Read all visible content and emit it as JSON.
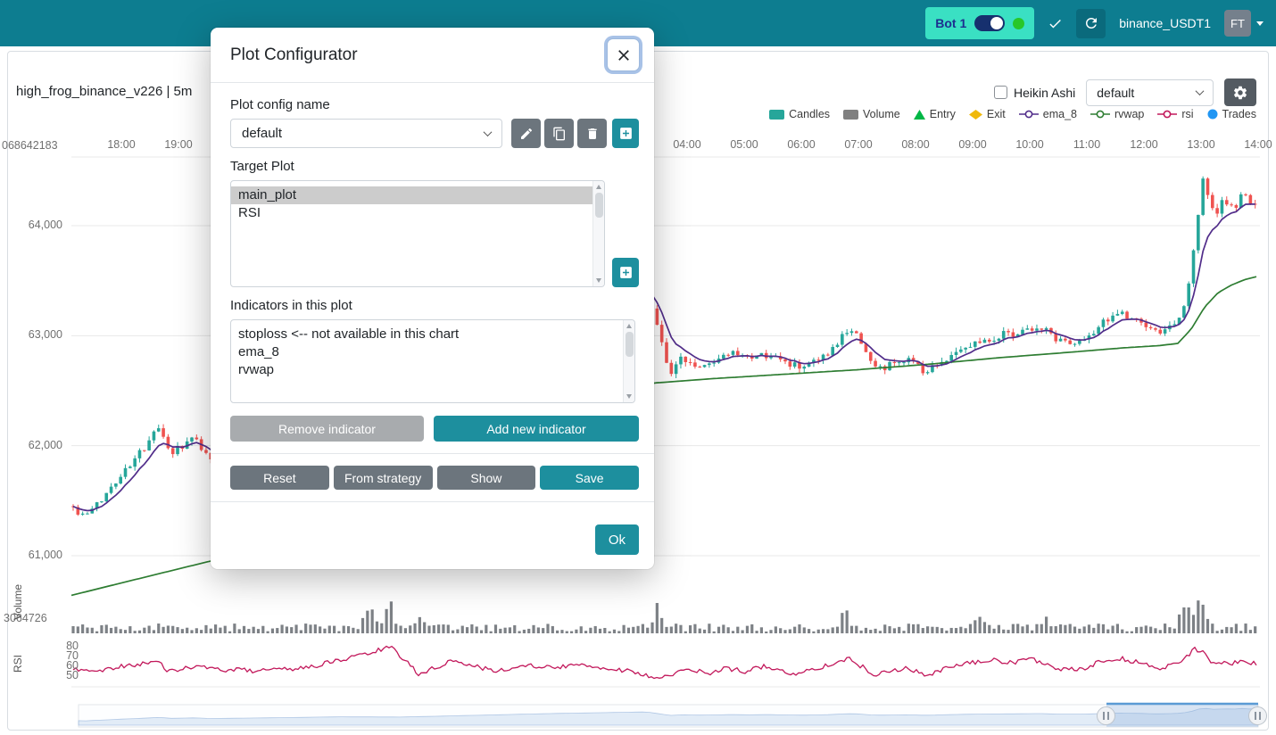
{
  "navbar": {
    "bot_label": "Bot 1",
    "instance_name": "binance_USDT1",
    "avatar_initials": "FT"
  },
  "chart": {
    "title": "high_frog_binance_v226 | 5m",
    "heikin_ashi_label": "Heikin Ashi",
    "plot_select_value": "default",
    "legend": [
      {
        "label": "Candles",
        "type": "rect",
        "color": "#26a69a"
      },
      {
        "label": "Volume",
        "type": "rect",
        "color": "#808080"
      },
      {
        "label": "Entry",
        "type": "triangle",
        "color": "#00b746"
      },
      {
        "label": "Exit",
        "type": "diamond",
        "color": "#f0b90b"
      },
      {
        "label": "ema_8",
        "type": "line-circle",
        "color": "#512d8a"
      },
      {
        "label": "rvwap",
        "type": "line-circle",
        "color": "#2e7d32"
      },
      {
        "label": "rsi",
        "type": "line-circle",
        "color": "#c2185b"
      },
      {
        "label": "Trades",
        "type": "circle",
        "color": "#2196f3"
      }
    ],
    "pane_labels": {
      "volume": "Volume",
      "rsi": "RSI"
    },
    "misc_axis_labels": {
      "top_left": "068642183",
      "volume_mid": "3064726"
    }
  },
  "modal": {
    "title": "Plot Configurator",
    "plot_config_name_label": "Plot config name",
    "config_name_value": "default",
    "target_plot_label": "Target Plot",
    "target_plots": [
      {
        "label": "main_plot",
        "selected": true
      },
      {
        "label": "RSI",
        "selected": false
      }
    ],
    "indicators_label": "Indicators in this plot",
    "indicators": [
      "stoploss <-- not available in this chart",
      "ema_8",
      "rvwap"
    ],
    "remove_button": "Remove indicator",
    "add_button": "Add new indicator",
    "reset_button": "Reset",
    "from_strategy_button": "From strategy",
    "show_button": "Show",
    "save_button": "Save",
    "ok_button": "Ok"
  },
  "chart_data": {
    "type": "candlestick",
    "x_ticks": [
      {
        "label": "18:00",
        "x": 136
      },
      {
        "label": "19:00",
        "x": 200
      },
      {
        "label": "04:00",
        "x": 770
      },
      {
        "label": "05:00",
        "x": 834
      },
      {
        "label": "06:00",
        "x": 898
      },
      {
        "label": "07:00",
        "x": 962
      },
      {
        "label": "08:00",
        "x": 1026
      },
      {
        "label": "09:00",
        "x": 1090
      },
      {
        "label": "10:00",
        "x": 1154
      },
      {
        "label": "11:00",
        "x": 1218
      },
      {
        "label": "12:00",
        "x": 1282
      },
      {
        "label": "13:00",
        "x": 1346
      },
      {
        "label": "14:00",
        "x": 1410
      }
    ],
    "price_ticks": [
      {
        "label": "64,000",
        "value": 64000
      },
      {
        "label": "63,000",
        "value": 63000
      },
      {
        "label": "62,000",
        "value": 62000
      },
      {
        "label": "61,000",
        "value": 61000
      }
    ],
    "rsi_ticks": [
      {
        "label": "80",
        "value": 80
      },
      {
        "label": "70",
        "value": 70
      },
      {
        "label": "60",
        "value": 60
      },
      {
        "label": "50",
        "value": 50
      }
    ],
    "price_keyframes": [
      [
        80,
        61450
      ],
      [
        95,
        61340
      ],
      [
        115,
        61520
      ],
      [
        130,
        61690
      ],
      [
        150,
        61860
      ],
      [
        168,
        62050
      ],
      [
        178,
        62160
      ],
      [
        192,
        61930
      ],
      [
        205,
        61990
      ],
      [
        218,
        62070
      ],
      [
        235,
        61880
      ],
      [
        300,
        62050
      ],
      [
        380,
        62300
      ],
      [
        450,
        62250
      ],
      [
        540,
        62700
      ],
      [
        620,
        63100
      ],
      [
        700,
        63400
      ],
      [
        725,
        63480
      ],
      [
        740,
        62980
      ],
      [
        752,
        62650
      ],
      [
        765,
        62800
      ],
      [
        785,
        62700
      ],
      [
        800,
        62760
      ],
      [
        820,
        62830
      ],
      [
        840,
        62780
      ],
      [
        860,
        62830
      ],
      [
        880,
        62760
      ],
      [
        900,
        62700
      ],
      [
        915,
        62760
      ],
      [
        930,
        62830
      ],
      [
        945,
        63000
      ],
      [
        958,
        63060
      ],
      [
        975,
        62760
      ],
      [
        990,
        62700
      ],
      [
        1005,
        62760
      ],
      [
        1020,
        62800
      ],
      [
        1035,
        62660
      ],
      [
        1050,
        62730
      ],
      [
        1065,
        62830
      ],
      [
        1080,
        62900
      ],
      [
        1095,
        62950
      ],
      [
        1110,
        62980
      ],
      [
        1125,
        63010
      ],
      [
        1140,
        63030
      ],
      [
        1155,
        63060
      ],
      [
        1165,
        63090
      ],
      [
        1180,
        62990
      ],
      [
        1195,
        62940
      ],
      [
        1210,
        62950
      ],
      [
        1225,
        63010
      ],
      [
        1240,
        63150
      ],
      [
        1255,
        63220
      ],
      [
        1265,
        63150
      ],
      [
        1280,
        63120
      ],
      [
        1295,
        63020
      ],
      [
        1310,
        63060
      ],
      [
        1322,
        63160
      ],
      [
        1332,
        63430
      ],
      [
        1340,
        63900
      ],
      [
        1347,
        64430
      ],
      [
        1353,
        64280
      ],
      [
        1362,
        64080
      ],
      [
        1372,
        64250
      ],
      [
        1382,
        64140
      ],
      [
        1392,
        64300
      ],
      [
        1402,
        64180
      ],
      [
        1410,
        64240
      ]
    ],
    "rvwap_keyframes": [
      [
        80,
        60640
      ],
      [
        160,
        60800
      ],
      [
        235,
        60950
      ],
      [
        320,
        61010
      ],
      [
        420,
        61300
      ],
      [
        520,
        61700
      ],
      [
        620,
        62150
      ],
      [
        700,
        62480
      ],
      [
        733,
        62570
      ],
      [
        800,
        62610
      ],
      [
        880,
        62650
      ],
      [
        960,
        62690
      ],
      [
        1040,
        62740
      ],
      [
        1120,
        62800
      ],
      [
        1200,
        62850
      ],
      [
        1260,
        62890
      ],
      [
        1300,
        62910
      ],
      [
        1320,
        62930
      ],
      [
        1335,
        63060
      ],
      [
        1350,
        63260
      ],
      [
        1365,
        63390
      ],
      [
        1380,
        63460
      ],
      [
        1395,
        63510
      ],
      [
        1410,
        63540
      ]
    ],
    "rsi_keyframes": [
      [
        85,
        57
      ],
      [
        110,
        55
      ],
      [
        135,
        60
      ],
      [
        160,
        63
      ],
      [
        175,
        65
      ],
      [
        190,
        55
      ],
      [
        205,
        58
      ],
      [
        220,
        60
      ],
      [
        235,
        57
      ],
      [
        300,
        55
      ],
      [
        350,
        60
      ],
      [
        390,
        68
      ],
      [
        420,
        75
      ],
      [
        437,
        80
      ],
      [
        455,
        65
      ],
      [
        470,
        52
      ],
      [
        490,
        60
      ],
      [
        510,
        66
      ],
      [
        530,
        60
      ],
      [
        560,
        55
      ],
      [
        590,
        62
      ],
      [
        620,
        58
      ],
      [
        650,
        62
      ],
      [
        680,
        58
      ],
      [
        710,
        55
      ],
      [
        737,
        47
      ],
      [
        755,
        52
      ],
      [
        775,
        57
      ],
      [
        795,
        52
      ],
      [
        815,
        58
      ],
      [
        835,
        55
      ],
      [
        855,
        60
      ],
      [
        875,
        55
      ],
      [
        895,
        52
      ],
      [
        915,
        58
      ],
      [
        935,
        64
      ],
      [
        950,
        68
      ],
      [
        965,
        60
      ],
      [
        980,
        52
      ],
      [
        1000,
        56
      ],
      [
        1020,
        58
      ],
      [
        1035,
        50
      ],
      [
        1055,
        56
      ],
      [
        1075,
        62
      ],
      [
        1095,
        64
      ],
      [
        1115,
        66
      ],
      [
        1135,
        64
      ],
      [
        1155,
        68
      ],
      [
        1175,
        60
      ],
      [
        1195,
        56
      ],
      [
        1215,
        58
      ],
      [
        1235,
        65
      ],
      [
        1255,
        68
      ],
      [
        1275,
        64
      ],
      [
        1295,
        58
      ],
      [
        1310,
        60
      ],
      [
        1325,
        66
      ],
      [
        1340,
        78
      ],
      [
        1352,
        72
      ],
      [
        1362,
        60
      ],
      [
        1372,
        66
      ],
      [
        1382,
        62
      ],
      [
        1392,
        68
      ],
      [
        1402,
        63
      ],
      [
        1410,
        62
      ]
    ],
    "volume_spikes": [
      [
        413,
        24,
        7
      ],
      [
        437,
        28,
        6
      ],
      [
        470,
        10,
        8
      ],
      [
        737,
        26,
        5
      ],
      [
        947,
        24,
        4
      ],
      [
        1100,
        8,
        10
      ],
      [
        1170,
        9,
        8
      ],
      [
        1328,
        24,
        8
      ],
      [
        1345,
        30,
        7
      ]
    ],
    "series_colors": {
      "up": "#26a69a",
      "down": "#ef5350",
      "ema_8": "#512d8a",
      "rvwap": "#2e7d32",
      "rsi": "#c2185b",
      "volume": "#7d8186"
    }
  }
}
